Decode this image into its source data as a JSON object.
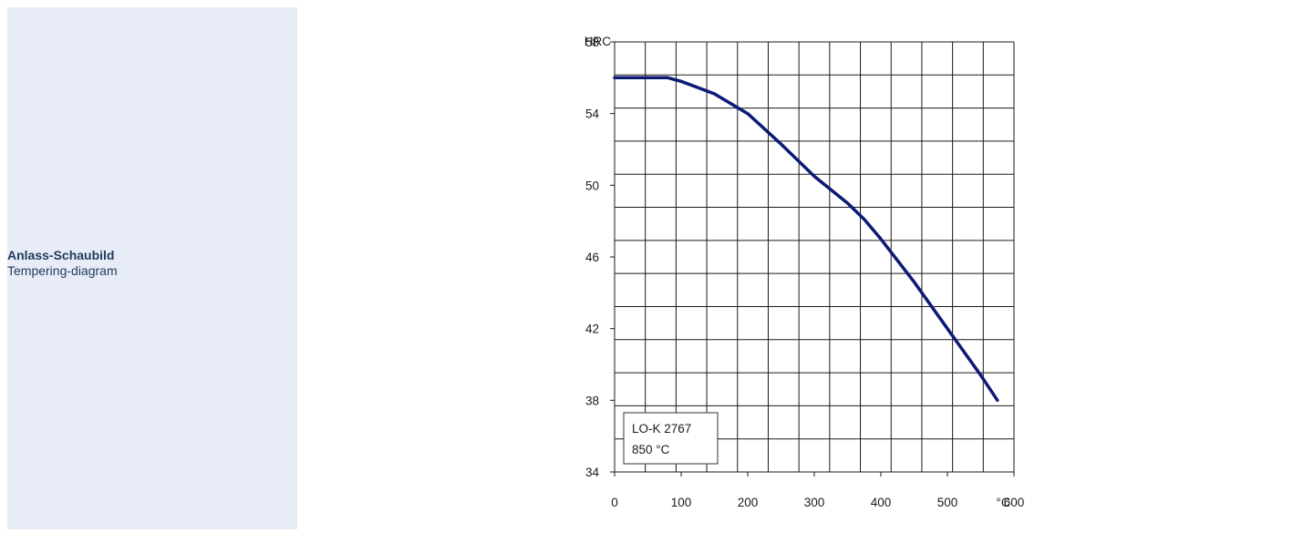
{
  "sidebar": {
    "title": "Anlass-Schaubild",
    "subtitle": "Tempering-diagram"
  },
  "colors": {
    "sidebar_bg": "#e7ecf6",
    "sidebar_text": "#1f3a5f",
    "curve": "#0d1a75",
    "grid": "#1a1a1a"
  },
  "chart_data": {
    "type": "line",
    "xlabel": "°C",
    "ylabel": "HRC",
    "xlim": [
      0,
      600
    ],
    "ylim": [
      34,
      58
    ],
    "xticks": [
      0,
      100,
      200,
      300,
      400,
      500,
      600
    ],
    "yticks": [
      34,
      38,
      42,
      46,
      50,
      54,
      58
    ],
    "grid": true,
    "legend_position": "bottom-left",
    "legend": [
      "LO-K 2767",
      "850 °C"
    ],
    "series": [
      {
        "name": "LO-K 2767",
        "x": [
          0,
          50,
          80,
          100,
          150,
          200,
          250,
          300,
          350,
          375,
          400,
          450,
          500,
          550,
          575
        ],
        "y": [
          56,
          56,
          56,
          55.8,
          55.1,
          54,
          52.3,
          50.5,
          49,
          48.1,
          47,
          44.6,
          42,
          39.4,
          38
        ]
      }
    ]
  }
}
